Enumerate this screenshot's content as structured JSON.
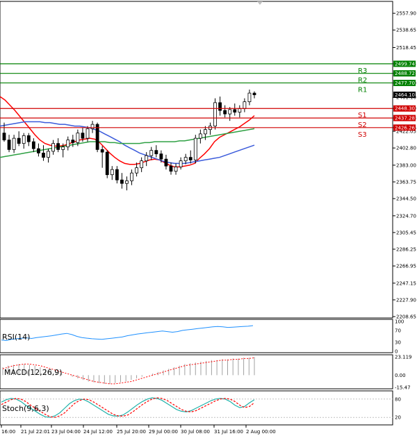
{
  "chart_data": [
    {
      "type": "candlestick",
      "panel": "price",
      "y_ticks": [
        "2557.90",
        "2538.65",
        "2518.45",
        "2499.74",
        "2488.72",
        "2477.70",
        "2461.10",
        "2448.30",
        "2437.28",
        "2426.26",
        "2422.05",
        "2402.80",
        "2383.00",
        "2363.75",
        "2344.50",
        "2324.70",
        "2305.45",
        "2286.25",
        "2266.95",
        "2247.15",
        "2227.90",
        "2208.65"
      ],
      "ylim": [
        2208.65,
        2570
      ],
      "x_labels": [
        "16:00",
        "21 Jul 22:01",
        "23 Jul 04:00",
        "24 Jul 12:00",
        "25 Jul 20:00",
        "29 Jul 00:00",
        "30 Jul 08:00",
        "31 Jul 16:00",
        "2 Aug 00:00"
      ],
      "current_price": "2464.10",
      "candles": [
        {
          "o": 2420,
          "h": 2432,
          "l": 2410,
          "c": 2412
        },
        {
          "o": 2412,
          "h": 2418,
          "l": 2398,
          "c": 2401
        },
        {
          "o": 2401,
          "h": 2418,
          "l": 2397,
          "c": 2414
        },
        {
          "o": 2414,
          "h": 2422,
          "l": 2405,
          "c": 2408
        },
        {
          "o": 2408,
          "h": 2420,
          "l": 2402,
          "c": 2417
        },
        {
          "o": 2417,
          "h": 2420,
          "l": 2405,
          "c": 2410
        },
        {
          "o": 2410,
          "h": 2414,
          "l": 2398,
          "c": 2402
        },
        {
          "o": 2402,
          "h": 2408,
          "l": 2393,
          "c": 2397
        },
        {
          "o": 2397,
          "h": 2406,
          "l": 2388,
          "c": 2392
        },
        {
          "o": 2392,
          "h": 2402,
          "l": 2386,
          "c": 2399
        },
        {
          "o": 2399,
          "h": 2412,
          "l": 2395,
          "c": 2408
        },
        {
          "o": 2408,
          "h": 2414,
          "l": 2398,
          "c": 2401
        },
        {
          "o": 2401,
          "h": 2408,
          "l": 2392,
          "c": 2404
        },
        {
          "o": 2404,
          "h": 2416,
          "l": 2400,
          "c": 2412
        },
        {
          "o": 2412,
          "h": 2418,
          "l": 2404,
          "c": 2409
        },
        {
          "o": 2409,
          "h": 2424,
          "l": 2405,
          "c": 2420
        },
        {
          "o": 2420,
          "h": 2426,
          "l": 2410,
          "c": 2414
        },
        {
          "o": 2414,
          "h": 2428,
          "l": 2410,
          "c": 2425
        },
        {
          "o": 2425,
          "h": 2434,
          "l": 2420,
          "c": 2430
        },
        {
          "o": 2430,
          "h": 2432,
          "l": 2398,
          "c": 2401
        },
        {
          "o": 2401,
          "h": 2405,
          "l": 2380,
          "c": 2398
        },
        {
          "o": 2398,
          "h": 2400,
          "l": 2368,
          "c": 2372
        },
        {
          "o": 2372,
          "h": 2382,
          "l": 2366,
          "c": 2378
        },
        {
          "o": 2378,
          "h": 2382,
          "l": 2362,
          "c": 2366
        },
        {
          "o": 2366,
          "h": 2374,
          "l": 2356,
          "c": 2362
        },
        {
          "o": 2362,
          "h": 2370,
          "l": 2354,
          "c": 2365
        },
        {
          "o": 2365,
          "h": 2378,
          "l": 2360,
          "c": 2374
        },
        {
          "o": 2374,
          "h": 2386,
          "l": 2370,
          "c": 2380
        },
        {
          "o": 2380,
          "h": 2392,
          "l": 2375,
          "c": 2388
        },
        {
          "o": 2388,
          "h": 2398,
          "l": 2382,
          "c": 2394
        },
        {
          "o": 2394,
          "h": 2404,
          "l": 2389,
          "c": 2400
        },
        {
          "o": 2400,
          "h": 2406,
          "l": 2392,
          "c": 2396
        },
        {
          "o": 2396,
          "h": 2400,
          "l": 2386,
          "c": 2390
        },
        {
          "o": 2390,
          "h": 2395,
          "l": 2378,
          "c": 2382
        },
        {
          "o": 2382,
          "h": 2386,
          "l": 2372,
          "c": 2376
        },
        {
          "o": 2376,
          "h": 2385,
          "l": 2372,
          "c": 2381
        },
        {
          "o": 2381,
          "h": 2392,
          "l": 2378,
          "c": 2388
        },
        {
          "o": 2388,
          "h": 2396,
          "l": 2384,
          "c": 2392
        },
        {
          "o": 2392,
          "h": 2400,
          "l": 2385,
          "c": 2389
        },
        {
          "o": 2389,
          "h": 2418,
          "l": 2385,
          "c": 2414
        },
        {
          "o": 2414,
          "h": 2424,
          "l": 2408,
          "c": 2419
        },
        {
          "o": 2419,
          "h": 2428,
          "l": 2412,
          "c": 2424
        },
        {
          "o": 2424,
          "h": 2432,
          "l": 2418,
          "c": 2428
        },
        {
          "o": 2428,
          "h": 2460,
          "l": 2424,
          "c": 2455
        },
        {
          "o": 2455,
          "h": 2462,
          "l": 2440,
          "c": 2446
        },
        {
          "o": 2446,
          "h": 2452,
          "l": 2438,
          "c": 2442
        },
        {
          "o": 2442,
          "h": 2450,
          "l": 2434,
          "c": 2447
        },
        {
          "o": 2447,
          "h": 2454,
          "l": 2440,
          "c": 2444
        },
        {
          "o": 2444,
          "h": 2452,
          "l": 2438,
          "c": 2448
        },
        {
          "o": 2448,
          "h": 2460,
          "l": 2444,
          "c": 2456
        },
        {
          "o": 2456,
          "h": 2470,
          "l": 2452,
          "c": 2466
        },
        {
          "o": 2466,
          "h": 2468,
          "l": 2460,
          "c": 2464
        }
      ],
      "moving_averages": [
        {
          "color": "#ff0000",
          "values": [
            2462,
            2458,
            2452,
            2446,
            2439,
            2432,
            2425,
            2418,
            2412,
            2408,
            2406,
            2405,
            2405,
            2406,
            2408,
            2410,
            2412,
            2413,
            2414,
            2413,
            2409,
            2403,
            2397,
            2392,
            2388,
            2385,
            2384,
            2384,
            2385,
            2387,
            2389,
            2390,
            2389,
            2386,
            2383,
            2381,
            2381,
            2382,
            2383,
            2385,
            2391,
            2396,
            2402,
            2410,
            2415,
            2418,
            2421,
            2424,
            2427,
            2431,
            2435,
            2440
          ]
        },
        {
          "color": "#3b5bdb",
          "values": [
            2428,
            2429,
            2430,
            2431,
            2432,
            2433,
            2433,
            2433,
            2433,
            2432,
            2432,
            2431,
            2430,
            2430,
            2429,
            2428,
            2428,
            2427,
            2426,
            2424,
            2422,
            2419,
            2416,
            2413,
            2410,
            2406,
            2403,
            2400,
            2397,
            2395,
            2393,
            2391,
            2389,
            2387,
            2386,
            2385,
            2385,
            2385,
            2386,
            2387,
            2388,
            2389,
            2390,
            2391,
            2392,
            2394,
            2396,
            2398,
            2400,
            2402,
            2404,
            2406
          ]
        },
        {
          "color": "#2ea043",
          "values": [
            2392,
            2393,
            2394,
            2395,
            2396,
            2397,
            2398,
            2399,
            2400,
            2401,
            2402,
            2403,
            2404,
            2405,
            2406,
            2407,
            2408,
            2409,
            2410,
            2410,
            2410,
            2410,
            2409,
            2409,
            2408,
            2408,
            2408,
            2408,
            2408,
            2409,
            2409,
            2410,
            2410,
            2410,
            2410,
            2410,
            2411,
            2411,
            2412,
            2413,
            2414,
            2415,
            2416,
            2417,
            2418,
            2419,
            2420,
            2421,
            2422,
            2423,
            2424,
            2425
          ]
        }
      ],
      "levels": [
        {
          "name": "R3",
          "value": 2499.74,
          "color": "#008000"
        },
        {
          "name": "R2",
          "value": 2488.72,
          "color": "#008000"
        },
        {
          "name": "R1",
          "value": 2477.7,
          "color": "#008000"
        },
        {
          "name": "S1",
          "value": 2448.3,
          "color": "#d00000"
        },
        {
          "name": "S2",
          "value": 2437.28,
          "color": "#d00000"
        },
        {
          "name": "S3",
          "value": 2426.26,
          "color": "#d00000"
        }
      ]
    },
    {
      "type": "line",
      "panel": "rsi",
      "title": "RSI(14)",
      "y_ticks": [
        "100",
        "70",
        "30",
        "0"
      ],
      "ylim": [
        0,
        100
      ],
      "values": [
        38,
        36,
        40,
        42,
        44,
        45,
        43,
        46,
        48,
        50,
        52,
        55,
        58,
        60,
        56,
        50,
        46,
        44,
        42,
        41,
        40,
        42,
        44,
        46,
        48,
        52,
        55,
        58,
        60,
        62,
        64,
        66,
        68,
        66,
        64,
        66,
        70,
        72,
        74,
        76,
        78,
        80,
        82,
        83,
        82,
        80,
        81,
        82,
        83,
        84,
        86
      ]
    },
    {
      "type": "bar",
      "panel": "macd",
      "title": "MACD(12,26,9)",
      "y_ticks": [
        "23.119",
        "0.00",
        "-15.47"
      ],
      "ylim": [
        -15.47,
        23.119
      ],
      "values": [
        10,
        12,
        13,
        14,
        14,
        13,
        12,
        10,
        8,
        6,
        4,
        2,
        0,
        -2,
        -4,
        -6,
        -8,
        -9,
        -10,
        -11,
        -11,
        -10,
        -9,
        -8,
        -6,
        -4,
        -2,
        0,
        2,
        4,
        6,
        8,
        10,
        12,
        14,
        15,
        16,
        17,
        18,
        19,
        19,
        20,
        20,
        21,
        21,
        22,
        22,
        23
      ],
      "signal": [
        8,
        10,
        12,
        13,
        14,
        14,
        13,
        12,
        10,
        8,
        6,
        4,
        2,
        0,
        -2,
        -4,
        -6,
        -8,
        -9,
        -10,
        -11,
        -11,
        -10,
        -9,
        -8,
        -6,
        -4,
        -2,
        0,
        2,
        4,
        6,
        8,
        10,
        12,
        13,
        14,
        15,
        16,
        17,
        18,
        19,
        19,
        20,
        20,
        21,
        21,
        22
      ]
    },
    {
      "type": "line",
      "panel": "stoch",
      "title": "Stoch(9,6,3)",
      "y_ticks": [
        "80",
        "20"
      ],
      "ylim": [
        0,
        100
      ],
      "main": [
        70,
        78,
        82,
        80,
        72,
        60,
        50,
        40,
        30,
        22,
        20,
        25,
        35,
        50,
        65,
        75,
        80,
        78,
        70,
        60,
        50,
        40,
        30,
        25,
        24,
        28,
        38,
        50,
        62,
        72,
        80,
        84,
        82,
        76,
        66,
        56,
        46,
        40,
        38,
        42,
        50,
        58,
        66,
        74,
        80,
        82,
        80,
        72,
        60,
        52,
        56,
        68,
        78
      ],
      "signal": [
        62,
        70,
        78,
        82,
        80,
        72,
        60,
        50,
        40,
        30,
        22,
        20,
        25,
        35,
        50,
        65,
        75,
        80,
        78,
        70,
        60,
        50,
        40,
        30,
        25,
        24,
        28,
        38,
        50,
        62,
        72,
        80,
        84,
        82,
        76,
        66,
        56,
        46,
        40,
        38,
        42,
        50,
        58,
        66,
        74,
        80,
        82,
        80,
        72,
        60,
        52,
        56,
        68
      ]
    }
  ]
}
